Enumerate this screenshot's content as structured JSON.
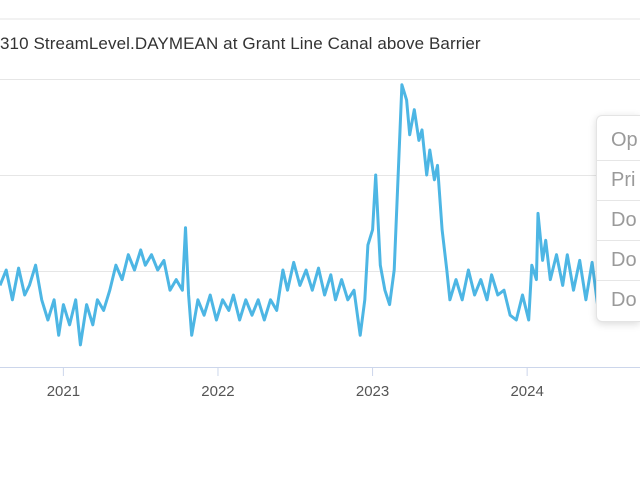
{
  "chart_data": {
    "type": "line",
    "title": "310 StreamLevel.DAYMEAN at Grant Line Canal above Barrier",
    "xlabel": "",
    "ylabel": "",
    "xlim": [
      2020.59,
      2024.73
    ],
    "ylim": [
      0,
      3
    ],
    "grid": true,
    "x_ticks": [
      2021,
      2022,
      2023,
      2024
    ],
    "x_tick_labels": [
      "2021",
      "2022",
      "2023",
      "2024"
    ],
    "y_gridlines": [
      1,
      2,
      3
    ],
    "series": [
      {
        "name": "StreamLevel.DAYMEAN",
        "color": "#4db6e4",
        "points": [
          [
            2020.59,
            0.85
          ],
          [
            2020.63,
            1.01
          ],
          [
            2020.67,
            0.7
          ],
          [
            2020.71,
            1.03
          ],
          [
            2020.75,
            0.75
          ],
          [
            2020.78,
            0.85
          ],
          [
            2020.82,
            1.06
          ],
          [
            2020.86,
            0.7
          ],
          [
            2020.9,
            0.49
          ],
          [
            2020.94,
            0.7
          ],
          [
            2020.97,
            0.33
          ],
          [
            2021.0,
            0.65
          ],
          [
            2021.04,
            0.44
          ],
          [
            2021.08,
            0.7
          ],
          [
            2021.11,
            0.23
          ],
          [
            2021.15,
            0.65
          ],
          [
            2021.19,
            0.44
          ],
          [
            2021.22,
            0.7
          ],
          [
            2021.26,
            0.59
          ],
          [
            2021.3,
            0.8
          ],
          [
            2021.34,
            1.06
          ],
          [
            2021.38,
            0.91
          ],
          [
            2021.42,
            1.17
          ],
          [
            2021.46,
            1.01
          ],
          [
            2021.5,
            1.22
          ],
          [
            2021.53,
            1.06
          ],
          [
            2021.57,
            1.17
          ],
          [
            2021.61,
            1.01
          ],
          [
            2021.65,
            1.11
          ],
          [
            2021.69,
            0.8
          ],
          [
            2021.73,
            0.91
          ],
          [
            2021.77,
            0.8
          ],
          [
            2021.79,
            1.45
          ],
          [
            2021.81,
            0.75
          ],
          [
            2021.83,
            0.33
          ],
          [
            2021.87,
            0.7
          ],
          [
            2021.91,
            0.54
          ],
          [
            2021.95,
            0.75
          ],
          [
            2021.99,
            0.49
          ],
          [
            2022.03,
            0.7
          ],
          [
            2022.07,
            0.59
          ],
          [
            2022.1,
            0.75
          ],
          [
            2022.14,
            0.49
          ],
          [
            2022.18,
            0.7
          ],
          [
            2022.22,
            0.54
          ],
          [
            2022.26,
            0.7
          ],
          [
            2022.3,
            0.49
          ],
          [
            2022.34,
            0.7
          ],
          [
            2022.38,
            0.59
          ],
          [
            2022.42,
            1.01
          ],
          [
            2022.45,
            0.8
          ],
          [
            2022.49,
            1.09
          ],
          [
            2022.53,
            0.85
          ],
          [
            2022.57,
            1.01
          ],
          [
            2022.61,
            0.8
          ],
          [
            2022.65,
            1.03
          ],
          [
            2022.69,
            0.75
          ],
          [
            2022.73,
            0.96
          ],
          [
            2022.76,
            0.7
          ],
          [
            2022.8,
            0.91
          ],
          [
            2022.84,
            0.7
          ],
          [
            2022.88,
            0.8
          ],
          [
            2022.92,
            0.33
          ],
          [
            2022.95,
            0.7
          ],
          [
            2022.97,
            1.27
          ],
          [
            2023.0,
            1.43
          ],
          [
            2023.02,
            2.0
          ],
          [
            2023.05,
            1.06
          ],
          [
            2023.08,
            0.8
          ],
          [
            2023.11,
            0.65
          ],
          [
            2023.14,
            1.01
          ],
          [
            2023.17,
            2.16
          ],
          [
            2023.19,
            2.94
          ],
          [
            2023.22,
            2.78
          ],
          [
            2023.24,
            2.42
          ],
          [
            2023.27,
            2.68
          ],
          [
            2023.3,
            2.36
          ],
          [
            2023.32,
            2.47
          ],
          [
            2023.35,
            2.0
          ],
          [
            2023.37,
            2.26
          ],
          [
            2023.4,
            1.95
          ],
          [
            2023.42,
            2.1
          ],
          [
            2023.45,
            1.43
          ],
          [
            2023.48,
            1.01
          ],
          [
            2023.5,
            0.7
          ],
          [
            2023.54,
            0.91
          ],
          [
            2023.58,
            0.7
          ],
          [
            2023.62,
            1.01
          ],
          [
            2023.66,
            0.75
          ],
          [
            2023.7,
            0.91
          ],
          [
            2023.74,
            0.7
          ],
          [
            2023.77,
            0.96
          ],
          [
            2023.81,
            0.75
          ],
          [
            2023.85,
            0.8
          ],
          [
            2023.89,
            0.54
          ],
          [
            2023.93,
            0.49
          ],
          [
            2023.97,
            0.75
          ],
          [
            2024.01,
            0.49
          ],
          [
            2024.03,
            1.06
          ],
          [
            2024.06,
            0.91
          ],
          [
            2024.07,
            1.6
          ],
          [
            2024.1,
            1.11
          ],
          [
            2024.12,
            1.32
          ],
          [
            2024.15,
            0.91
          ],
          [
            2024.19,
            1.17
          ],
          [
            2024.23,
            0.85
          ],
          [
            2024.26,
            1.17
          ],
          [
            2024.3,
            0.8
          ],
          [
            2024.34,
            1.11
          ],
          [
            2024.38,
            0.7
          ],
          [
            2024.42,
            1.09
          ],
          [
            2024.46,
            0.59
          ]
        ]
      }
    ]
  },
  "context_menu": {
    "items": [
      "Op",
      "Pri",
      "Do",
      "Do",
      "Do"
    ]
  }
}
